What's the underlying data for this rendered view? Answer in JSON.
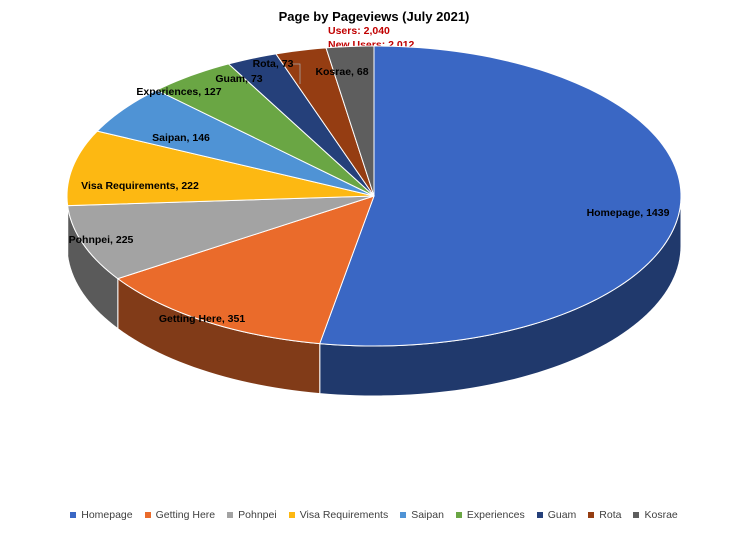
{
  "chart_data": {
    "type": "pie",
    "title": "Page by Pageviews (July 2021)",
    "annotations": [
      "Users: 2,040",
      "New Users: 2,012"
    ],
    "annotation_color": "#c00000",
    "legend_position": "bottom",
    "slices": [
      {
        "label": "Homepage",
        "value": 1439,
        "data_label": "Homepage, 1439",
        "color": "#3a67c4"
      },
      {
        "label": "Getting Here",
        "value": 351,
        "data_label": "Getting Here, 351",
        "color": "#ea6b2b"
      },
      {
        "label": "Pohnpei",
        "value": 225,
        "data_label": "Pohnpei, 225",
        "color": "#a3a3a3"
      },
      {
        "label": "Visa Requirements",
        "value": 222,
        "data_label": "Visa Requirements, 222",
        "color": "#fdb812"
      },
      {
        "label": "Saipan",
        "value": 146,
        "data_label": "Saipan, 146",
        "color": "#4f93d5"
      },
      {
        "label": "Experiences",
        "value": 127,
        "data_label": "Experiences, 127",
        "color": "#6aa644"
      },
      {
        "label": "Guam",
        "value": 73,
        "data_label": "Guam, 73",
        "color": "#25407a"
      },
      {
        "label": "Rota",
        "value": 73,
        "data_label": "Rota, 73",
        "color": "#953d12"
      },
      {
        "label": "Kosrae",
        "value": 68,
        "data_label": "Kosrae, 68",
        "color": "#5e5e5e"
      }
    ]
  }
}
